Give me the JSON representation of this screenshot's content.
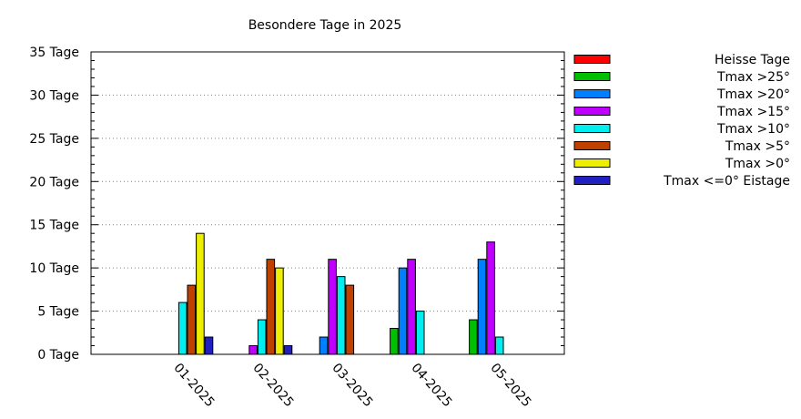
{
  "chart_data": {
    "type": "bar",
    "title": "Besondere Tage in 2025",
    "categories": [
      "01-2025",
      "02-2025",
      "03-2025",
      "04-2025",
      "05-2025"
    ],
    "ylim": [
      0,
      35
    ],
    "y_ticks": [
      "0 Tage",
      "5 Tage",
      "10 Tage",
      "15 Tage",
      "20 Tage",
      "25 Tage",
      "30 Tage",
      "35 Tage"
    ],
    "grid": true,
    "legend_position": "right",
    "series": [
      {
        "name": "Heisse Tage",
        "color": "#ff0000",
        "values": [
          0,
          0,
          0,
          0,
          0
        ]
      },
      {
        "name": "Tmax >25°",
        "color": "#00c000",
        "values": [
          0,
          0,
          0,
          3,
          4
        ]
      },
      {
        "name": "Tmax >20°",
        "color": "#0080ff",
        "values": [
          0,
          0,
          2,
          10,
          11
        ]
      },
      {
        "name": "Tmax >15°",
        "color": "#c000ff",
        "values": [
          0,
          1,
          11,
          11,
          13
        ]
      },
      {
        "name": "Tmax >10°",
        "color": "#00eeee",
        "values": [
          6,
          4,
          9,
          5,
          2
        ]
      },
      {
        "name": "Tmax >5°",
        "color": "#c04000",
        "values": [
          8,
          11,
          8,
          0,
          0
        ]
      },
      {
        "name": "Tmax >0°",
        "color": "#eeee00",
        "values": [
          14,
          10,
          0,
          0,
          0
        ]
      },
      {
        "name": "Tmax <=0° Eistage",
        "color": "#2020c0",
        "values": [
          2,
          1,
          0,
          0,
          0
        ]
      }
    ]
  }
}
